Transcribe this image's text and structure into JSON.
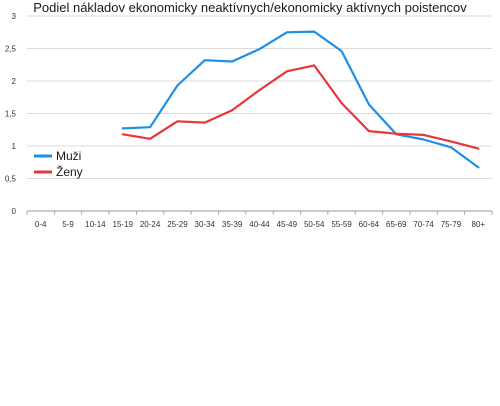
{
  "chart_data": {
    "type": "line",
    "title": "Podiel nákladov ekonomicky neaktívnych/ekonomicky aktívnych poistencov",
    "xlabel": "",
    "ylabel": "",
    "categories": [
      "0-4",
      "5-9",
      "10-14",
      "15-19",
      "20-24",
      "25-29",
      "30-34",
      "35-39",
      "40-44",
      "45-49",
      "50-54",
      "55-59",
      "60-64",
      "65-69",
      "70-74",
      "75-79",
      "80+"
    ],
    "ylim": [
      0,
      3
    ],
    "yticks": [
      "0",
      "0,5",
      "1",
      "1,5",
      "2",
      "2,5",
      "3"
    ],
    "grid": "horizontal",
    "legend_position": "left",
    "series": [
      {
        "name": "Muži",
        "color": "#1f8fe5",
        "values": [
          null,
          null,
          null,
          1.27,
          1.29,
          1.93,
          2.32,
          2.3,
          2.49,
          2.75,
          2.76,
          2.46,
          1.64,
          1.18,
          1.1,
          0.98,
          0.67
        ]
      },
      {
        "name": "Ženy",
        "color": "#e8363a",
        "values": [
          null,
          null,
          null,
          1.18,
          1.11,
          1.38,
          1.36,
          1.55,
          1.86,
          2.15,
          2.24,
          1.66,
          1.23,
          1.19,
          1.17,
          1.07,
          0.96
        ]
      }
    ]
  }
}
